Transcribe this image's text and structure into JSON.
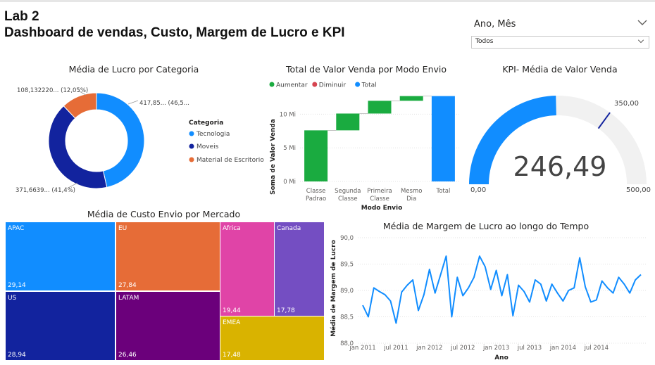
{
  "header": {
    "line1": "Lab 2",
    "line2": "Dashboard de vendas, Custo, Margem de Lucro e KPI"
  },
  "slicer": {
    "title": "Ano, Mês",
    "value": "Todos",
    "icon": "chevron-down-icon"
  },
  "donut": {
    "title": "Média de Lucro por Categoria",
    "legend_title": "Categoria",
    "labels": {
      "tecnologia": "417,85... (46,5...",
      "moveis": "371,6639... (41,4%)",
      "material": "108,132220... (12,05%)"
    },
    "chart_data": {
      "type": "pie",
      "categories": [
        "Tecnologia",
        "Moveis",
        "Material de Escritorio"
      ],
      "percent": [
        46.5,
        41.4,
        12.05
      ],
      "colors": [
        "#118DFF",
        "#12239E",
        "#E66C37"
      ]
    }
  },
  "waterfall": {
    "title": "Total de Valor Venda por Modo Envio",
    "legend": [
      {
        "label": "Aumentar",
        "color": "#1AAB40"
      },
      {
        "label": "Diminuir",
        "color": "#D64550"
      },
      {
        "label": "Total",
        "color": "#118DFF"
      }
    ],
    "xlabel": "Modo Envio",
    "ylabel": "Soma de Valor Venda",
    "yticks": [
      "0 Mi",
      "5 Mi",
      "10 Mi"
    ],
    "categories": [
      [
        "Classe",
        "Padrao"
      ],
      [
        "Segunda",
        "Classe"
      ],
      [
        "Primeira",
        "Classe"
      ],
      [
        "Mesmo",
        "Dia"
      ],
      [
        "Total"
      ]
    ],
    "chart_data": {
      "type": "bar",
      "subtype": "waterfall",
      "categories": [
        "Classe Padrao",
        "Segunda Classe",
        "Primeira Classe",
        "Mesmo Dia",
        "Total"
      ],
      "increments": [
        7.6,
        2.5,
        1.9,
        0.7,
        0
      ],
      "total": 12.7,
      "ylim": [
        0,
        13.6
      ]
    }
  },
  "gauge": {
    "title": "KPI- Média de Valor Venda",
    "value_label": "246,49",
    "min_label": "0,00",
    "max_label": "500,00",
    "target_label": "350,00",
    "chart_data": {
      "type": "gauge",
      "value": 246.49,
      "min": 0,
      "max": 500,
      "target": 350
    }
  },
  "treemap": {
    "title": "Média de Custo Envio por Mercado",
    "tiles": [
      {
        "name": "APAC",
        "value": "29,14",
        "color": "#118DFF"
      },
      {
        "name": "US",
        "value": "28,94",
        "color": "#12239E"
      },
      {
        "name": "EU",
        "value": "27,84",
        "color": "#E66C37"
      },
      {
        "name": "LATAM",
        "value": "26,46",
        "color": "#6B007B"
      },
      {
        "name": "Africa",
        "value": "19,44",
        "color": "#E044A7"
      },
      {
        "name": "Canada",
        "value": "17,78",
        "color": "#744EC2"
      },
      {
        "name": "EMEA",
        "value": "17,48",
        "color": "#D9B300"
      }
    ]
  },
  "line": {
    "title": "Média de Margem de Lucro ao longo do Tempo",
    "xlabel": "Ano",
    "ylabel": "Média de Margem de Lucro",
    "yticks": [
      "88,0",
      "88,5",
      "89,0",
      "89,5",
      "90,0"
    ],
    "xticks": [
      "jan 2011",
      "jul 2011",
      "jan 2012",
      "jul 2012",
      "jan 2013",
      "jul 2013",
      "jan 2014",
      "jul 2014"
    ],
    "chart_data": {
      "type": "line",
      "x_start": "jan 2011",
      "x_step": "month",
      "ylim": [
        88.0,
        90.0
      ],
      "y": [
        88.72,
        88.5,
        89.05,
        88.98,
        88.92,
        88.8,
        88.38,
        88.97,
        89.1,
        89.2,
        88.62,
        88.92,
        89.4,
        88.95,
        89.3,
        89.65,
        88.5,
        89.25,
        88.9,
        89.05,
        89.25,
        89.65,
        89.45,
        89.02,
        89.38,
        88.9,
        89.3,
        88.52,
        89.1,
        88.98,
        88.78,
        89.2,
        89.12,
        88.8,
        89.12,
        88.95,
        88.8,
        89.0,
        89.05,
        89.62,
        89.07,
        88.78,
        88.82,
        89.18,
        89.05,
        88.95,
        89.25,
        89.12,
        88.95,
        89.2,
        89.3
      ]
    }
  }
}
